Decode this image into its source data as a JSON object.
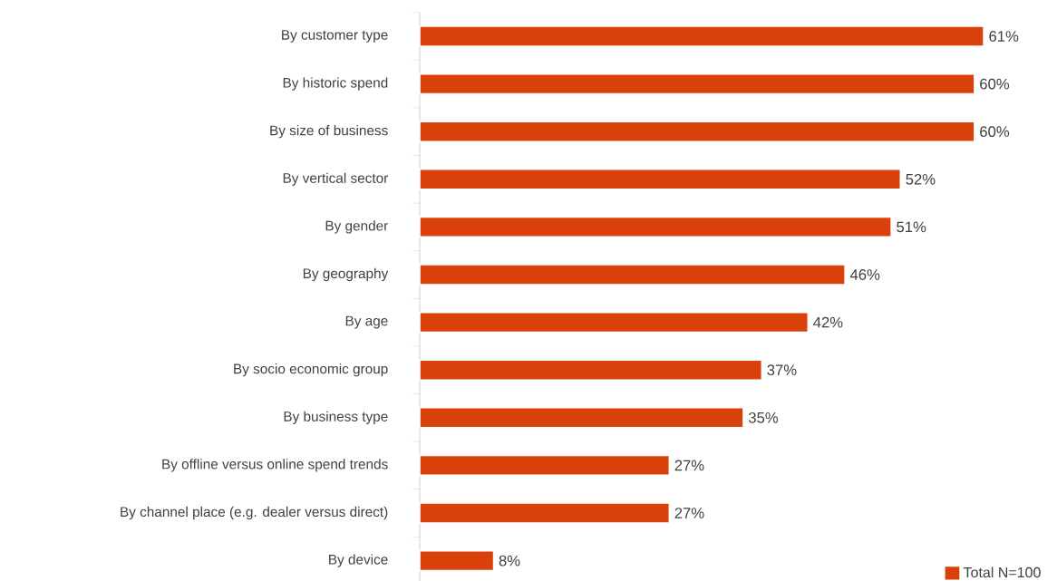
{
  "chart_data": {
    "type": "bar",
    "orientation": "horizontal",
    "categories": [
      "By customer type",
      "By historic spend",
      "By size of business",
      "By vertical sector",
      "By gender",
      "By geography",
      "By age",
      "By socio economic group",
      "By business type",
      "By offline versus online spend trends",
      "By channel place (e.g. dealer versus direct)",
      "By device"
    ],
    "series": [
      {
        "name": "Total N=100",
        "color": "#d9410b",
        "values": [
          61,
          60,
          60,
          52,
          51,
          46,
          42,
          37,
          35,
          27,
          27,
          8
        ],
        "value_labels": [
          "61%",
          "60%",
          "60%",
          "52%",
          "51%",
          "46%",
          "42%",
          "37%",
          "35%",
          "27%",
          "27%",
          "8%"
        ]
      }
    ],
    "legend": "bottom right",
    "grid": false
  }
}
